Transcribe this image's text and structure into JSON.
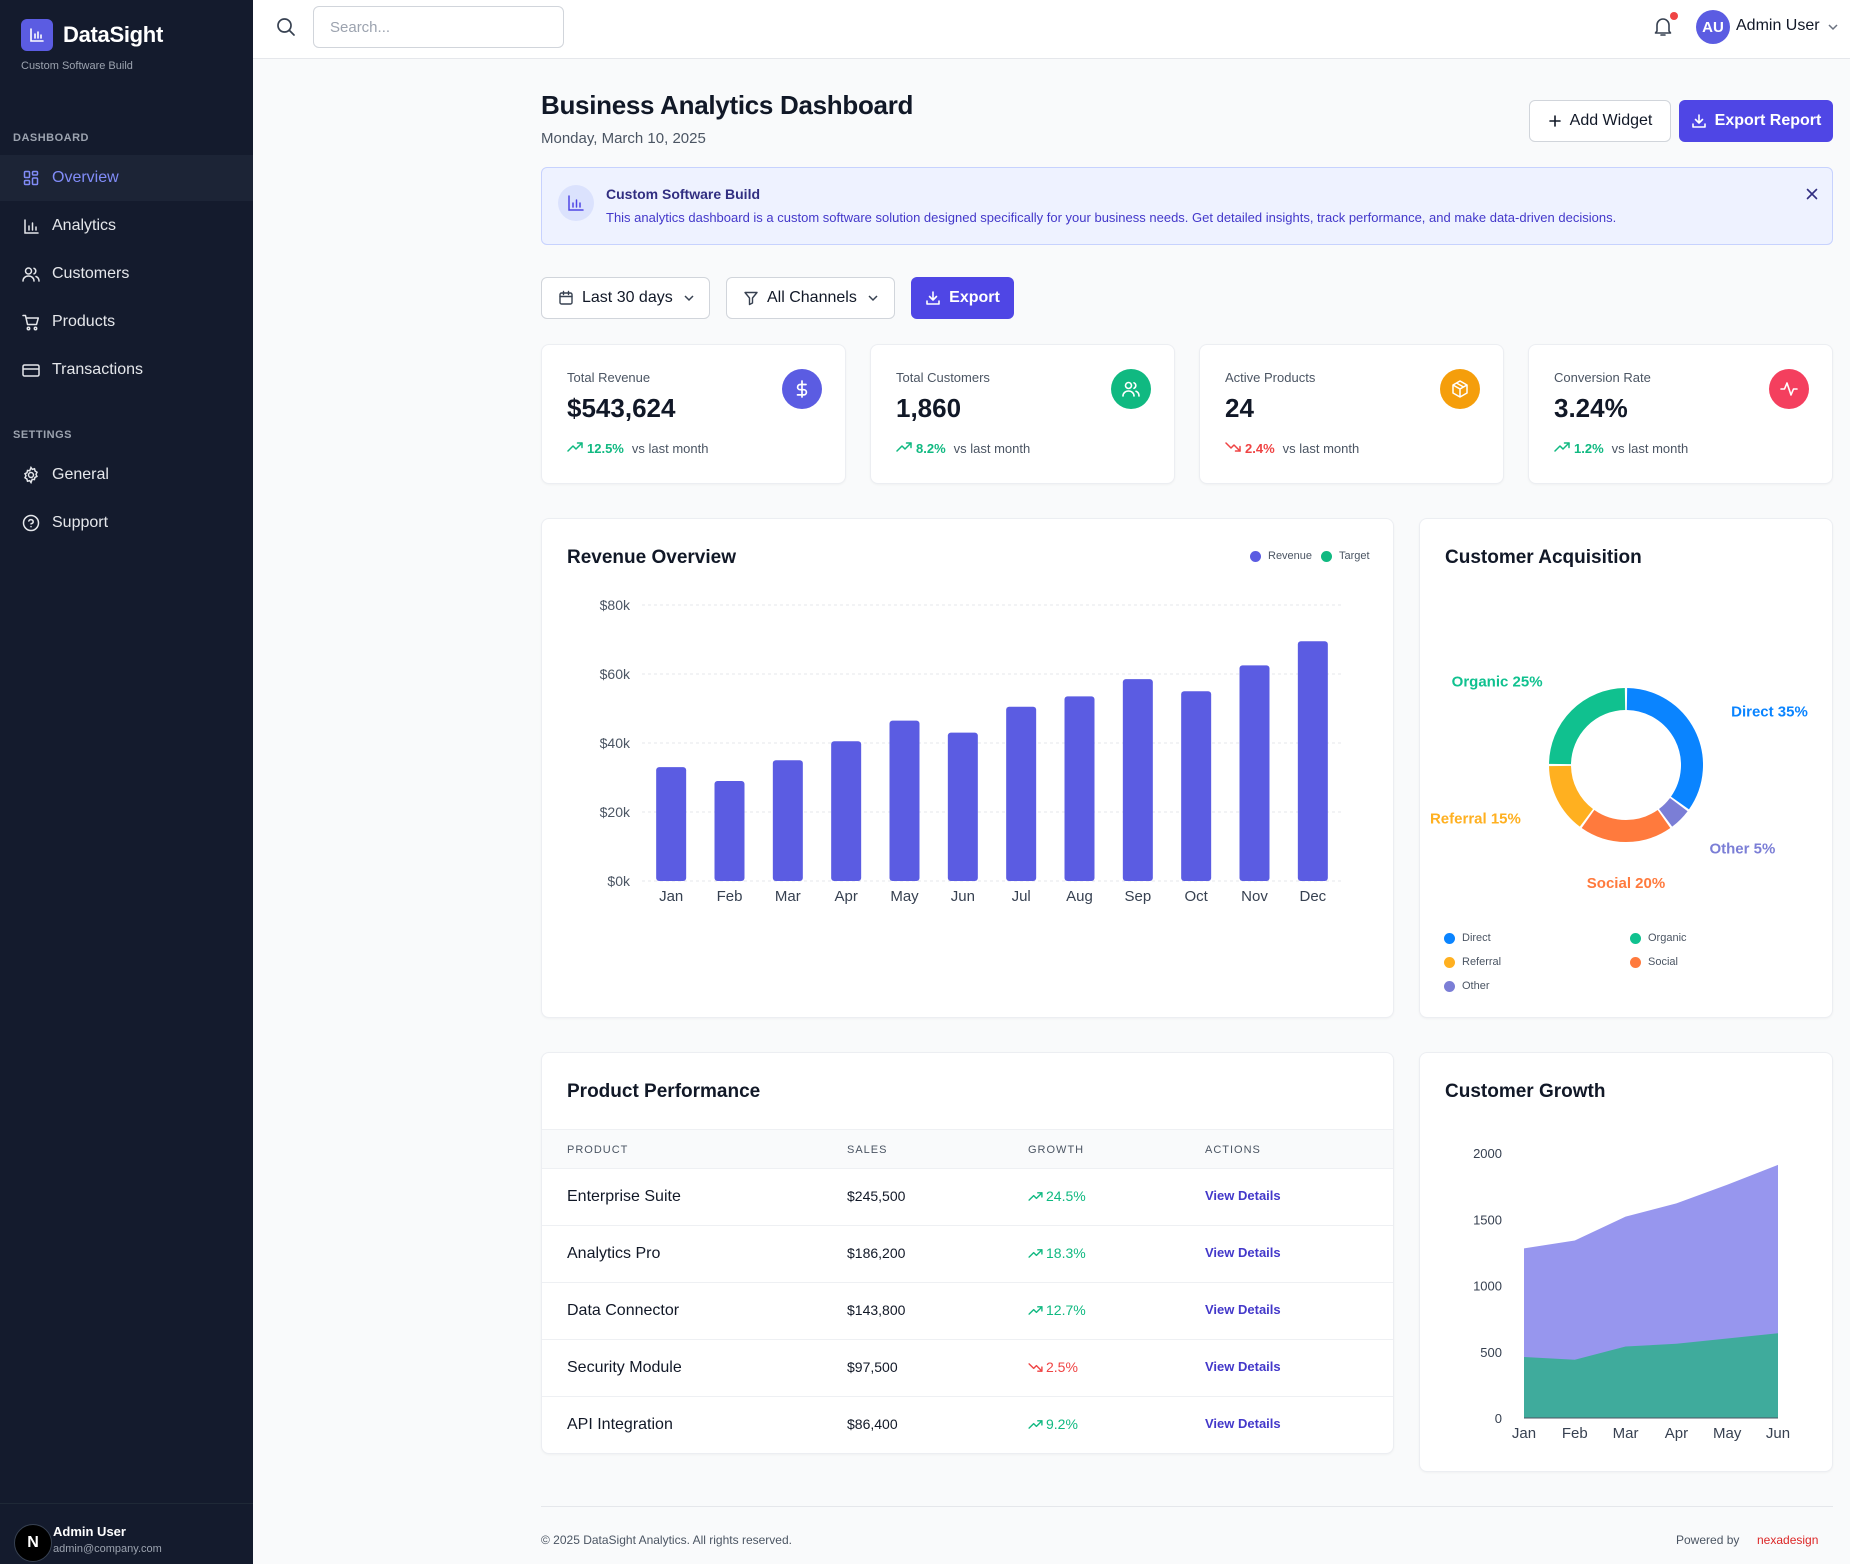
{
  "brand": {
    "name": "DataSight",
    "subtitle": "Custom Software Build"
  },
  "sidebar": {
    "section_dashboard": "DASHBOARD",
    "section_settings": "SETTINGS",
    "items": [
      {
        "label": "Overview",
        "icon": "grid-icon",
        "active": true
      },
      {
        "label": "Analytics",
        "icon": "bar-chart-icon"
      },
      {
        "label": "Customers",
        "icon": "users-icon"
      },
      {
        "label": "Products",
        "icon": "cart-icon"
      },
      {
        "label": "Transactions",
        "icon": "credit-card-icon"
      }
    ],
    "settings_items": [
      {
        "label": "General",
        "icon": "gear-icon"
      },
      {
        "label": "Support",
        "icon": "help-circle-icon"
      }
    ],
    "footer": {
      "avatar_letter": "N",
      "name": "Admin User",
      "email": "admin@company.com"
    }
  },
  "topbar": {
    "search_placeholder": "Search...",
    "user_initials": "AU",
    "user_name": "Admin User"
  },
  "header": {
    "title": "Business Analytics Dashboard",
    "date": "Monday, March 10, 2025",
    "add_widget": "Add Widget",
    "export_report": "Export Report"
  },
  "banner": {
    "title": "Custom Software Build",
    "text": "This analytics dashboard is a custom software solution designed specifically for your business needs. Get detailed insights, track performance, and make data-driven decisions."
  },
  "filters": {
    "range": "Last 30 days",
    "channels": "All Channels",
    "export": "Export"
  },
  "stats": [
    {
      "label": "Total Revenue",
      "value": "$543,624",
      "change": "12.5%",
      "direction": "up",
      "suffix": "vs last month",
      "color": "#5b5ce2",
      "icon": "dollar-icon"
    },
    {
      "label": "Total Customers",
      "value": "1,860",
      "change": "8.2%",
      "direction": "up",
      "suffix": "vs last month",
      "color": "#10b981",
      "icon": "users-icon"
    },
    {
      "label": "Active Products",
      "value": "24",
      "change": "2.4%",
      "direction": "down",
      "suffix": "vs last month",
      "color": "#f59e0b",
      "icon": "box-icon"
    },
    {
      "label": "Conversion Rate",
      "value": "3.24%",
      "change": "1.2%",
      "direction": "up",
      "suffix": "vs last month",
      "color": "#f43f5e",
      "icon": "activity-icon"
    }
  ],
  "revenue": {
    "title": "Revenue Overview",
    "legend": [
      "Revenue",
      "Target"
    ]
  },
  "acquisition": {
    "title": "Customer Acquisition",
    "legend": [
      "Direct",
      "Organic",
      "Referral",
      "Social",
      "Other"
    ]
  },
  "products": {
    "title": "Product Performance",
    "headers": [
      "PRODUCT",
      "SALES",
      "GROWTH",
      "ACTIONS"
    ],
    "rows": [
      {
        "name": "Enterprise Suite",
        "sales": "$245,500",
        "growth": "24.5%",
        "direction": "up",
        "action": "View Details"
      },
      {
        "name": "Analytics Pro",
        "sales": "$186,200",
        "growth": "18.3%",
        "direction": "up",
        "action": "View Details"
      },
      {
        "name": "Data Connector",
        "sales": "$143,800",
        "growth": "12.7%",
        "direction": "up",
        "action": "View Details"
      },
      {
        "name": "Security Module",
        "sales": "$97,500",
        "growth": "2.5%",
        "direction": "down",
        "action": "View Details"
      },
      {
        "name": "API Integration",
        "sales": "$86,400",
        "growth": "9.2%",
        "direction": "up",
        "action": "View Details"
      }
    ]
  },
  "growth": {
    "title": "Customer Growth"
  },
  "footer": {
    "copyright": "© 2025 DataSight Analytics. All rights reserved.",
    "powered": "Powered by",
    "powered_brand": "nexadesign"
  },
  "colors": {
    "primary": "#4f46e5",
    "sidebar": "#141b2d",
    "up": "#10b981",
    "down": "#ef4444"
  },
  "chart_data": [
    {
      "type": "bar",
      "categories": [
        "Jan",
        "Feb",
        "Mar",
        "Apr",
        "May",
        "Jun",
        "Jul",
        "Aug",
        "Sep",
        "Oct",
        "Nov",
        "Dec"
      ],
      "series": [
        {
          "name": "Revenue",
          "color": "#5b5ce2",
          "values": [
            33000,
            29000,
            35000,
            40500,
            46500,
            43000,
            50500,
            53500,
            58500,
            55000,
            62500,
            69500
          ]
        }
      ],
      "ylim": [
        0,
        80000
      ],
      "yticks": [
        0,
        20000,
        40000,
        60000,
        80000
      ],
      "ytick_labels": [
        "$0k",
        "$20k",
        "$40k",
        "$60k",
        "$80k"
      ],
      "grid": true
    },
    {
      "type": "pie",
      "donut": true,
      "slices": [
        {
          "label": "Direct",
          "value": 35,
          "color": "#0a84ff",
          "text": "Direct 35%"
        },
        {
          "label": "Other",
          "value": 5,
          "color": "#7b7ed6",
          "text": "Other 5%"
        },
        {
          "label": "Social",
          "value": 20,
          "color": "#ff7a3d",
          "text": "Social 20%"
        },
        {
          "label": "Referral",
          "value": 15,
          "color": "#ffb020",
          "text": "Referral 15%"
        },
        {
          "label": "Organic",
          "value": 25,
          "color": "#10c18f",
          "text": "Organic 25%"
        }
      ]
    },
    {
      "type": "area",
      "categories": [
        "Jan",
        "Feb",
        "Mar",
        "Apr",
        "May",
        "Jun"
      ],
      "series": [
        {
          "name": "",
          "color": "#9796ee",
          "values": [
            1280,
            1340,
            1520,
            1620,
            1760,
            1910
          ]
        },
        {
          "name": "",
          "color": "#3fab9c",
          "values": [
            460,
            440,
            540,
            560,
            600,
            640
          ]
        }
      ],
      "ylim": [
        0,
        2000
      ],
      "yticks": [
        0,
        500,
        1000,
        1500,
        2000
      ],
      "ytick_labels": [
        "0",
        "500",
        "1000",
        "1500",
        "2000"
      ]
    }
  ]
}
